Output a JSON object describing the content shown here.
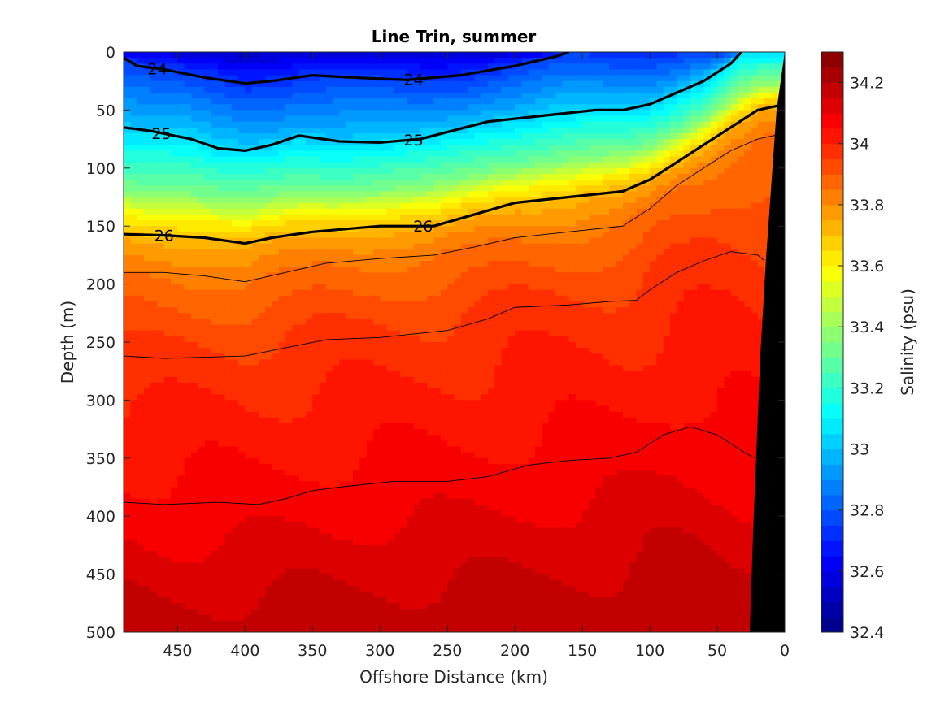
{
  "chart_data": {
    "type": "heatmap",
    "title": "Line Trin, summer",
    "xlabel": "Offshore Distance (km)",
    "ylabel": "Depth (m)",
    "colorbar_label": "Salinity (psu)",
    "xlim": [
      490,
      0
    ],
    "x_direction": "reversed",
    "ylim": [
      0,
      500
    ],
    "y_direction": "reversed",
    "x_ticks": [
      450,
      400,
      350,
      300,
      250,
      200,
      150,
      100,
      50,
      0
    ],
    "y_ticks": [
      0,
      50,
      100,
      150,
      200,
      250,
      300,
      350,
      400,
      450,
      500
    ],
    "colorbar": {
      "range": [
        32.4,
        34.3
      ],
      "step": 0.05,
      "ticks": [
        32.4,
        32.6,
        32.8,
        33,
        33.2,
        33.4,
        33.6,
        33.8,
        34,
        34.2
      ],
      "colormap": "jet"
    },
    "salinity_profile": {
      "depths": [
        0,
        20,
        50,
        80,
        100,
        130,
        150,
        170,
        200,
        250,
        300,
        400,
        500
      ],
      "salinity": [
        32.55,
        32.7,
        32.85,
        33.0,
        33.15,
        33.35,
        33.6,
        33.75,
        33.85,
        33.95,
        34.0,
        34.08,
        34.18
      ]
    },
    "density_contours": [
      {
        "label": "24",
        "bold": true,
        "points": [
          [
            490,
            5
          ],
          [
            480,
            12
          ],
          [
            460,
            15
          ],
          [
            430,
            22
          ],
          [
            400,
            27
          ],
          [
            380,
            25
          ],
          [
            350,
            20
          ],
          [
            320,
            22
          ],
          [
            280,
            24
          ],
          [
            240,
            20
          ],
          [
            200,
            12
          ],
          [
            170,
            4
          ],
          [
            160,
            0
          ]
        ]
      },
      {
        "label": "25",
        "bold": true,
        "points": [
          [
            490,
            65
          ],
          [
            470,
            68
          ],
          [
            440,
            75
          ],
          [
            420,
            83
          ],
          [
            400,
            85
          ],
          [
            380,
            80
          ],
          [
            360,
            72
          ],
          [
            330,
            77
          ],
          [
            300,
            78
          ],
          [
            270,
            75
          ],
          [
            240,
            66
          ],
          [
            220,
            60
          ],
          [
            180,
            55
          ],
          [
            140,
            50
          ],
          [
            120,
            50
          ],
          [
            100,
            45
          ],
          [
            80,
            35
          ],
          [
            60,
            25
          ],
          [
            40,
            10
          ],
          [
            32,
            0
          ]
        ]
      },
      {
        "label": "26",
        "bold": true,
        "points": [
          [
            490,
            157
          ],
          [
            460,
            158
          ],
          [
            430,
            160
          ],
          [
            400,
            165
          ],
          [
            380,
            160
          ],
          [
            350,
            155
          ],
          [
            300,
            150
          ],
          [
            260,
            150
          ],
          [
            230,
            140
          ],
          [
            200,
            130
          ],
          [
            160,
            125
          ],
          [
            120,
            120
          ],
          [
            100,
            110
          ],
          [
            80,
            95
          ],
          [
            60,
            80
          ],
          [
            40,
            65
          ],
          [
            20,
            50
          ],
          [
            0,
            45
          ]
        ]
      },
      {
        "label": "",
        "bold": false,
        "points": [
          [
            490,
            190
          ],
          [
            460,
            190
          ],
          [
            430,
            193
          ],
          [
            400,
            198
          ],
          [
            370,
            190
          ],
          [
            340,
            182
          ],
          [
            300,
            178
          ],
          [
            260,
            175
          ],
          [
            230,
            168
          ],
          [
            200,
            160
          ],
          [
            160,
            155
          ],
          [
            120,
            150
          ],
          [
            100,
            135
          ],
          [
            80,
            115
          ],
          [
            60,
            100
          ],
          [
            40,
            85
          ],
          [
            20,
            75
          ],
          [
            0,
            70
          ]
        ]
      },
      {
        "label": "",
        "bold": false,
        "points": [
          [
            490,
            262
          ],
          [
            460,
            264
          ],
          [
            430,
            263
          ],
          [
            400,
            262
          ],
          [
            370,
            255
          ],
          [
            340,
            248
          ],
          [
            300,
            246
          ],
          [
            250,
            240
          ],
          [
            220,
            230
          ],
          [
            200,
            220
          ],
          [
            160,
            218
          ],
          [
            130,
            215
          ],
          [
            110,
            214
          ],
          [
            100,
            205
          ],
          [
            80,
            190
          ],
          [
            60,
            180
          ],
          [
            40,
            172
          ],
          [
            20,
            175
          ],
          [
            15,
            180
          ]
        ]
      },
      {
        "label": "",
        "bold": false,
        "points": [
          [
            490,
            388
          ],
          [
            460,
            390
          ],
          [
            420,
            388
          ],
          [
            390,
            390
          ],
          [
            370,
            385
          ],
          [
            350,
            378
          ],
          [
            330,
            375
          ],
          [
            290,
            370
          ],
          [
            250,
            370
          ],
          [
            220,
            366
          ],
          [
            190,
            356
          ],
          [
            160,
            352
          ],
          [
            130,
            350
          ],
          [
            110,
            345
          ],
          [
            90,
            330
          ],
          [
            70,
            323
          ],
          [
            50,
            330
          ],
          [
            30,
            345
          ],
          [
            22,
            350
          ]
        ]
      }
    ],
    "bathymetry": {
      "color": "#000000",
      "points": [
        [
          0,
          0
        ],
        [
          6,
          50
        ],
        [
          14,
          180
        ],
        [
          18,
          260
        ],
        [
          23,
          400
        ],
        [
          26,
          500
        ],
        [
          0,
          500
        ]
      ]
    }
  }
}
